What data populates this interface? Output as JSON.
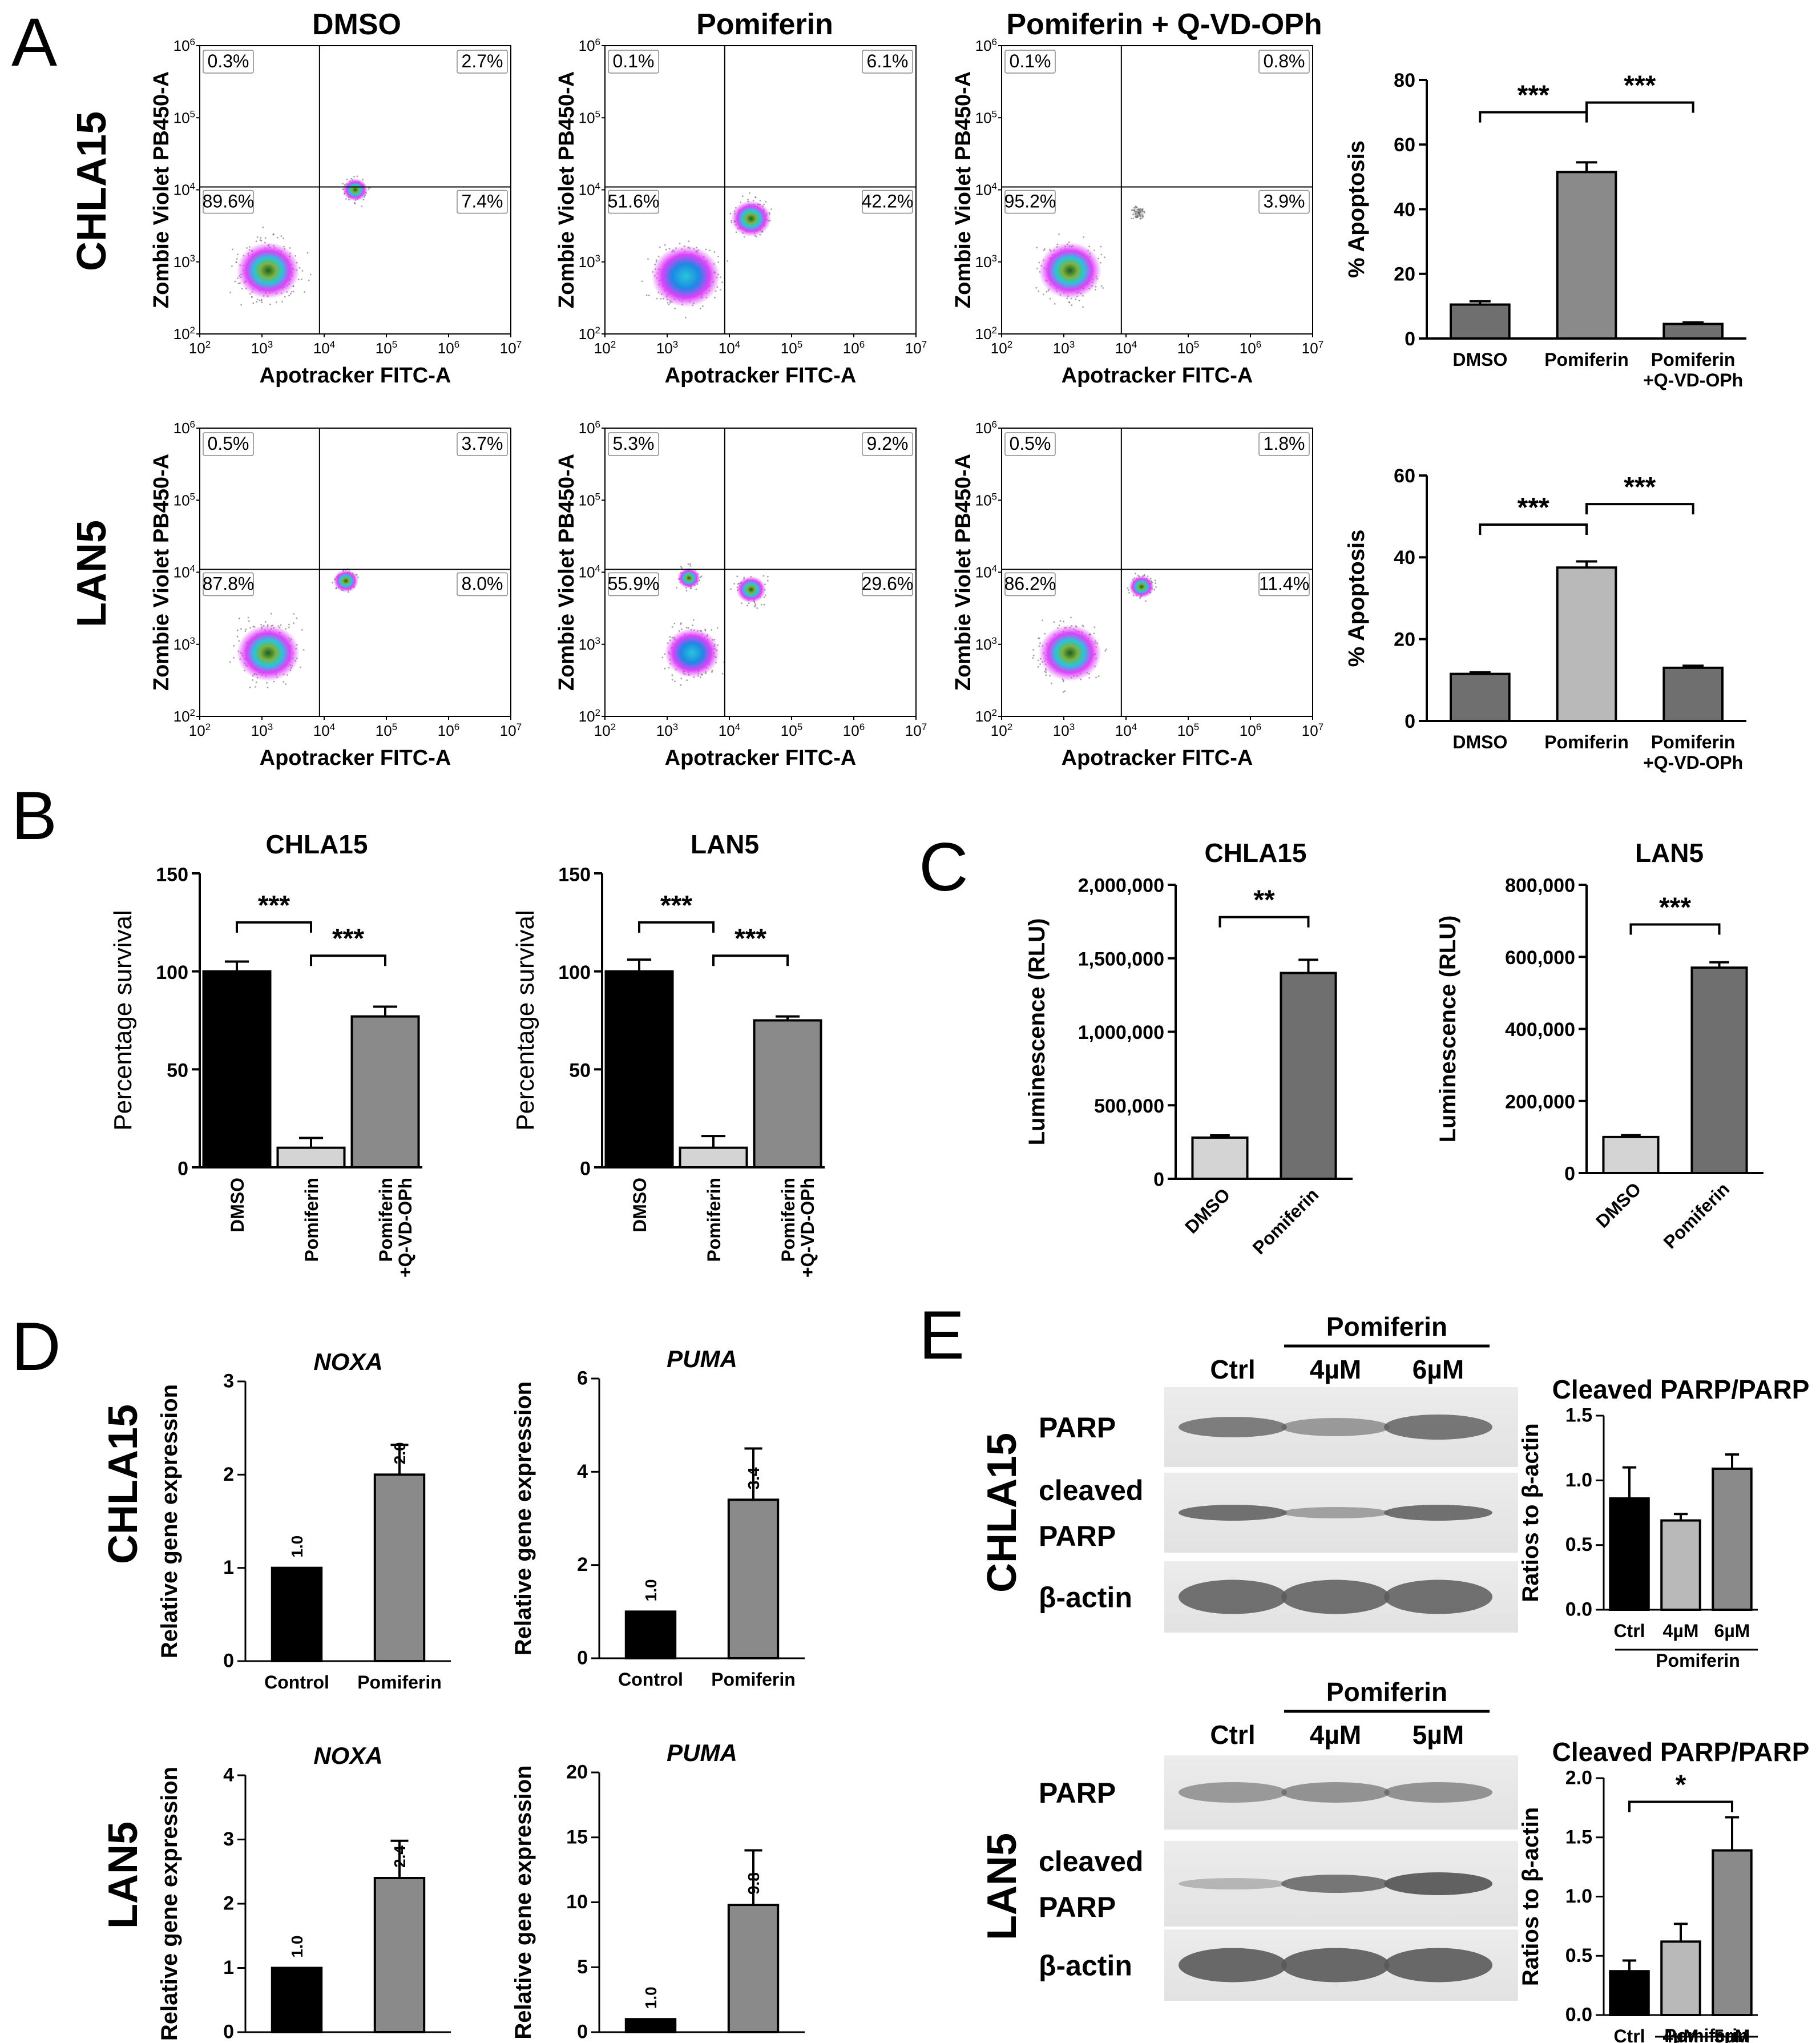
{
  "panel_letters": {
    "A": "A",
    "B": "B",
    "C": "C",
    "D": "D",
    "E": "E"
  },
  "colors": {
    "black_bar": "#000000",
    "dark_gray_bar": "#6f6f6f",
    "mid_gray_bar": "#8a8a8a",
    "light_gray_bar": "#d4d4d4",
    "lighter_gray_bar": "#b9b9b9",
    "flow_cluster_outer": "#e04ad8",
    "flow_cluster_mid": "#2bb0c9",
    "flow_cluster_core": "#2e7d32",
    "flow_scatter": "#555555",
    "blot_band": "#5a5a5a",
    "blot_bg": "#e7e7e7"
  },
  "panel_a": {
    "row_labels": [
      "CHLA15",
      "LAN5"
    ],
    "column_titles": [
      "DMSO",
      "Pomiferin",
      "Pomiferin + Q-VD-OPh"
    ],
    "x_axis_title": "Apotracker FITC-A",
    "y_axis_title": "Zombie Violet PB450-A",
    "tick_base": "10",
    "tick_exponents": [
      "2",
      "3",
      "4",
      "5",
      "6",
      "7"
    ],
    "y_tick_exponents": [
      "2",
      "3",
      "4",
      "5",
      "6"
    ],
    "quadrants": [
      [
        {
          "ul": "0.3%",
          "ur": "2.7%",
          "ll": "89.6%",
          "lr": "7.4%"
        },
        {
          "ul": "0.1%",
          "ur": "6.1%",
          "ll": "51.6%",
          "lr": "42.2%"
        },
        {
          "ul": "0.1%",
          "ur": "0.8%",
          "ll": "95.2%",
          "lr": "3.9%"
        }
      ],
      [
        {
          "ul": "0.5%",
          "ur": "3.7%",
          "ll": "87.8%",
          "lr": "8.0%"
        },
        {
          "ul": "5.3%",
          "ur": "9.2%",
          "ll": "55.9%",
          "lr": "29.6%"
        },
        {
          "ul": "0.5%",
          "ur": "1.8%",
          "ll": "86.2%",
          "lr": "11.4%"
        }
      ]
    ],
    "apoptosis_y_title": "% Apoptosis",
    "apoptosis_categories": [
      "DMSO",
      "Pomiferin",
      "Pomiferin",
      "+Q-VD-OPh"
    ],
    "significance": "***"
  },
  "panel_b": {
    "titles": [
      "CHLA15",
      "LAN5"
    ],
    "y_title": "Percentage survival",
    "categories": [
      "DMSO",
      "Pomiferin",
      "Pomiferin",
      "+Q-VD-OPh"
    ],
    "significance": "***"
  },
  "panel_c": {
    "titles": [
      "CHLA15",
      "LAN5"
    ],
    "y_title": "Luminescence (RLU)",
    "categories": [
      "DMSO",
      "Pomiferin"
    ],
    "significance": [
      "**",
      "***"
    ]
  },
  "panel_d": {
    "row_labels": [
      "CHLA15",
      "LAN5"
    ],
    "genes": [
      "NOXA",
      "PUMA",
      "NOXA",
      "PUMA"
    ],
    "y_title": "Relative gene expression",
    "categories": [
      "Control",
      "Pomiferin"
    ]
  },
  "panel_e": {
    "row_labels": [
      "CHLA15",
      "LAN5"
    ],
    "treatment_label": "Pomiferin",
    "lanes_top": [
      "Ctrl",
      "4µM",
      "6µM"
    ],
    "lanes_bottom": [
      "Ctrl",
      "4µM",
      "5µM"
    ],
    "band_labels": [
      "PARP",
      "cleaved",
      "PARP",
      "β-actin"
    ],
    "chart_title": "Cleaved PARP/PARP",
    "y_title": "Ratios to β-actin",
    "cats_top": [
      "Ctrl",
      "4µM",
      "6µM"
    ],
    "cats_bottom": [
      "Ctrl",
      "4µM",
      "5µM"
    ],
    "subgroup": "Pomiferin",
    "significance": "*"
  },
  "chart_data": [
    {
      "id": "a-chla15-apoptosis",
      "type": "bar",
      "title": "",
      "ylabel": "% Apoptosis",
      "categories": [
        "DMSO",
        "Pomiferin",
        "Pomiferin +Q-VD-OPh"
      ],
      "values": [
        10.5,
        51.5,
        4.5
      ],
      "errors": [
        1.0,
        3.0,
        0.5
      ],
      "ylim": [
        0,
        80
      ],
      "yticks": [
        "0",
        "20",
        "40",
        "60",
        "80"
      ]
    },
    {
      "id": "a-lan5-apoptosis",
      "type": "bar",
      "title": "",
      "ylabel": "% Apoptosis",
      "categories": [
        "DMSO",
        "Pomiferin",
        "Pomiferin +Q-VD-OPh"
      ],
      "values": [
        11.5,
        37.5,
        13.0
      ],
      "errors": [
        0.4,
        1.5,
        0.5
      ],
      "ylim": [
        0,
        60
      ],
      "yticks": [
        "0",
        "20",
        "40",
        "60"
      ]
    },
    {
      "id": "b-chla15",
      "type": "bar",
      "title": "CHLA15",
      "ylabel": "Percentage survival",
      "categories": [
        "DMSO",
        "Pomiferin",
        "Pomiferin +Q-VD-OPh"
      ],
      "values": [
        100,
        10,
        77
      ],
      "errors": [
        5,
        5,
        5
      ],
      "ylim": [
        0,
        150
      ],
      "yticks": [
        "0",
        "50",
        "100",
        "150"
      ]
    },
    {
      "id": "b-lan5",
      "type": "bar",
      "title": "LAN5",
      "ylabel": "Percentage survival",
      "categories": [
        "DMSO",
        "Pomiferin",
        "Pomiferin +Q-VD-OPh"
      ],
      "values": [
        100,
        10,
        75
      ],
      "errors": [
        6,
        6,
        2
      ],
      "ylim": [
        0,
        150
      ],
      "yticks": [
        "0",
        "50",
        "100",
        "150"
      ]
    },
    {
      "id": "c-chla15",
      "type": "bar",
      "title": "CHLA15",
      "ylabel": "Luminescence (RLU)",
      "categories": [
        "DMSO",
        "Pomiferin"
      ],
      "values": [
        280000,
        1400000
      ],
      "errors": [
        15000,
        90000
      ],
      "ylim": [
        0,
        2000000
      ],
      "yticks": [
        "0",
        "500,000",
        "1,000,000",
        "1,500,000",
        "2,000,000"
      ]
    },
    {
      "id": "c-lan5",
      "type": "bar",
      "title": "LAN5",
      "ylabel": "Luminescence (RLU)",
      "categories": [
        "DMSO",
        "Pomiferin"
      ],
      "values": [
        100000,
        570000
      ],
      "errors": [
        5000,
        15000
      ],
      "ylim": [
        0,
        800000
      ],
      "yticks": [
        "0",
        "200,000",
        "400,000",
        "600,000",
        "800,000"
      ]
    },
    {
      "id": "d-chla15-noxa",
      "type": "bar",
      "title": "NOXA",
      "ylabel": "Relative gene expression",
      "categories": [
        "Control",
        "Pomiferin"
      ],
      "values": [
        1.0,
        2.0
      ],
      "errors": [
        0,
        0.32
      ],
      "labels": [
        "1.0",
        "2.0"
      ],
      "ylim": [
        0,
        3
      ],
      "yticks": [
        "0",
        "1",
        "2",
        "3"
      ]
    },
    {
      "id": "d-chla15-puma",
      "type": "bar",
      "title": "PUMA",
      "ylabel": "Relative gene expression",
      "categories": [
        "Control",
        "Pomiferin"
      ],
      "values": [
        1.0,
        3.4
      ],
      "errors": [
        0,
        1.1
      ],
      "labels": [
        "1.0",
        "3.4"
      ],
      "ylim": [
        0,
        6
      ],
      "yticks": [
        "0",
        "2",
        "4",
        "6"
      ]
    },
    {
      "id": "d-lan5-noxa",
      "type": "bar",
      "title": "NOXA",
      "ylabel": "Relative gene expression",
      "categories": [
        "Control",
        "Pomiferin"
      ],
      "values": [
        1.0,
        2.4
      ],
      "errors": [
        0,
        0.58
      ],
      "labels": [
        "1.0",
        "2.4"
      ],
      "ylim": [
        0,
        4
      ],
      "yticks": [
        "0",
        "1",
        "2",
        "3",
        "4"
      ]
    },
    {
      "id": "d-lan5-puma",
      "type": "bar",
      "title": "PUMA",
      "ylabel": "Relative gene expression",
      "categories": [
        "Control",
        "Pomiferin"
      ],
      "values": [
        1.0,
        9.8
      ],
      "errors": [
        0,
        4.2
      ],
      "labels": [
        "1.0",
        "9.8"
      ],
      "ylim": [
        0,
        20
      ],
      "yticks": [
        "0",
        "5",
        "10",
        "15",
        "20"
      ]
    },
    {
      "id": "e-chla15",
      "type": "bar",
      "title": "Cleaved PARP/PARP",
      "ylabel": "Ratios to β-actin",
      "categories": [
        "Ctrl",
        "4µM",
        "6µM"
      ],
      "values": [
        0.86,
        0.69,
        1.09
      ],
      "errors": [
        0.24,
        0.05,
        0.11
      ],
      "ylim": [
        0,
        1.5
      ],
      "yticks": [
        "0.0",
        "0.5",
        "1.0",
        "1.5"
      ]
    },
    {
      "id": "e-lan5",
      "type": "bar",
      "title": "Cleaved PARP/PARP",
      "ylabel": "Ratios to β-actin",
      "categories": [
        "Ctrl",
        "4µM",
        "5µM"
      ],
      "values": [
        0.37,
        0.62,
        1.39
      ],
      "errors": [
        0.09,
        0.15,
        0.28
      ],
      "ylim": [
        0,
        2.0
      ],
      "yticks": [
        "0.0",
        "0.5",
        "1.0",
        "1.5",
        "2.0"
      ]
    }
  ]
}
